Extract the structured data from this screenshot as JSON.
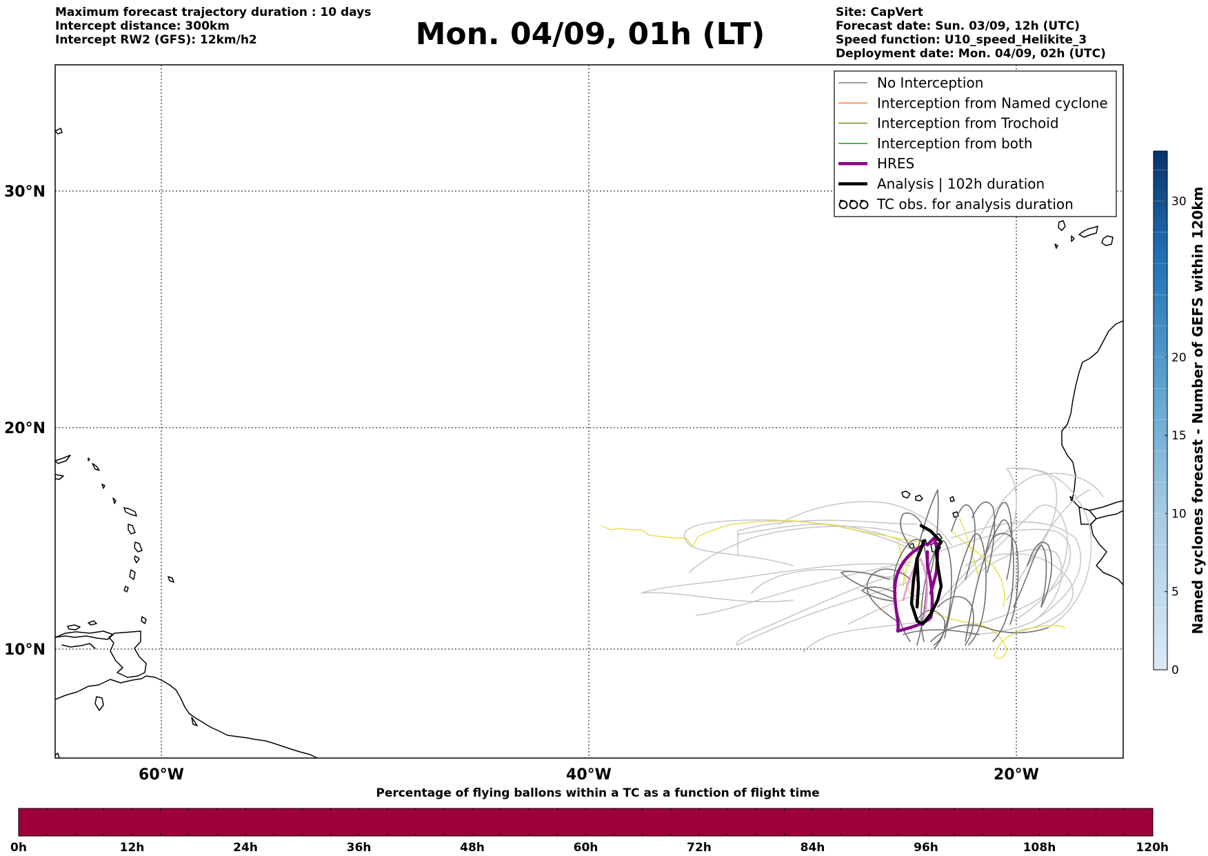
{
  "header": {
    "left": [
      "Maximum forecast trajectory duration : 10 days",
      "Intercept distance: 300km",
      "Intercept RW2 (GFS):  12km/h2"
    ],
    "title": "Mon. 04/09, 01h (LT)",
    "right": [
      "Site: CapVert",
      "Forecast date: Sun. 03/09, 12h (UTC)",
      "Speed function: U10_speed_Helikite_3",
      "Deployment date: Mon. 04/09, 02h (UTC)"
    ]
  },
  "map": {
    "lat_labels": [
      "30°N",
      "20°N",
      "10°N"
    ],
    "lon_labels": [
      "60°W",
      "40°W",
      "20°W"
    ],
    "colors": {
      "no_interception": "#808080",
      "named_cyclone": "#ff7f50",
      "trochoid": "#8b8b2e",
      "both": "#2ca02c",
      "hres": "#8b008b",
      "analysis": "#000000",
      "ensemble_light": "#c8c8c8",
      "ensemble_dark": "#6e6e6e",
      "yellow_track": "#e8e050"
    }
  },
  "legend": {
    "items": [
      {
        "label": "No Interception",
        "color": "#808080",
        "style": "thin"
      },
      {
        "label": "Interception from Named cyclone",
        "color": "#ff7f50",
        "style": "thin"
      },
      {
        "label": "Interception from Trochoid",
        "color": "#8b8b2e",
        "style": "thin"
      },
      {
        "label": "Interception from both",
        "color": "#2ca02c",
        "style": "thin"
      },
      {
        "label": "HRES",
        "color": "#8b008b",
        "style": "thick"
      },
      {
        "label": "Analysis | 102h duration",
        "color": "#000000",
        "style": "thick"
      },
      {
        "label": "TC obs. for analysis duration",
        "color": "#000000",
        "style": "tc"
      }
    ]
  },
  "right_colorbar": {
    "title": "Named cyclones forecast - Number of GEFS within 120km",
    "ticks": [
      "0",
      "5",
      "10",
      "15",
      "20",
      "30"
    ]
  },
  "bottom_colorbar": {
    "title": "Percentage of flying ballons within a TC as a function of flight time",
    "ticks": [
      "0h",
      "12h",
      "24h",
      "36h",
      "48h",
      "60h",
      "72h",
      "84h",
      "96h",
      "108h",
      "120h"
    ],
    "color": "#9e003a"
  }
}
